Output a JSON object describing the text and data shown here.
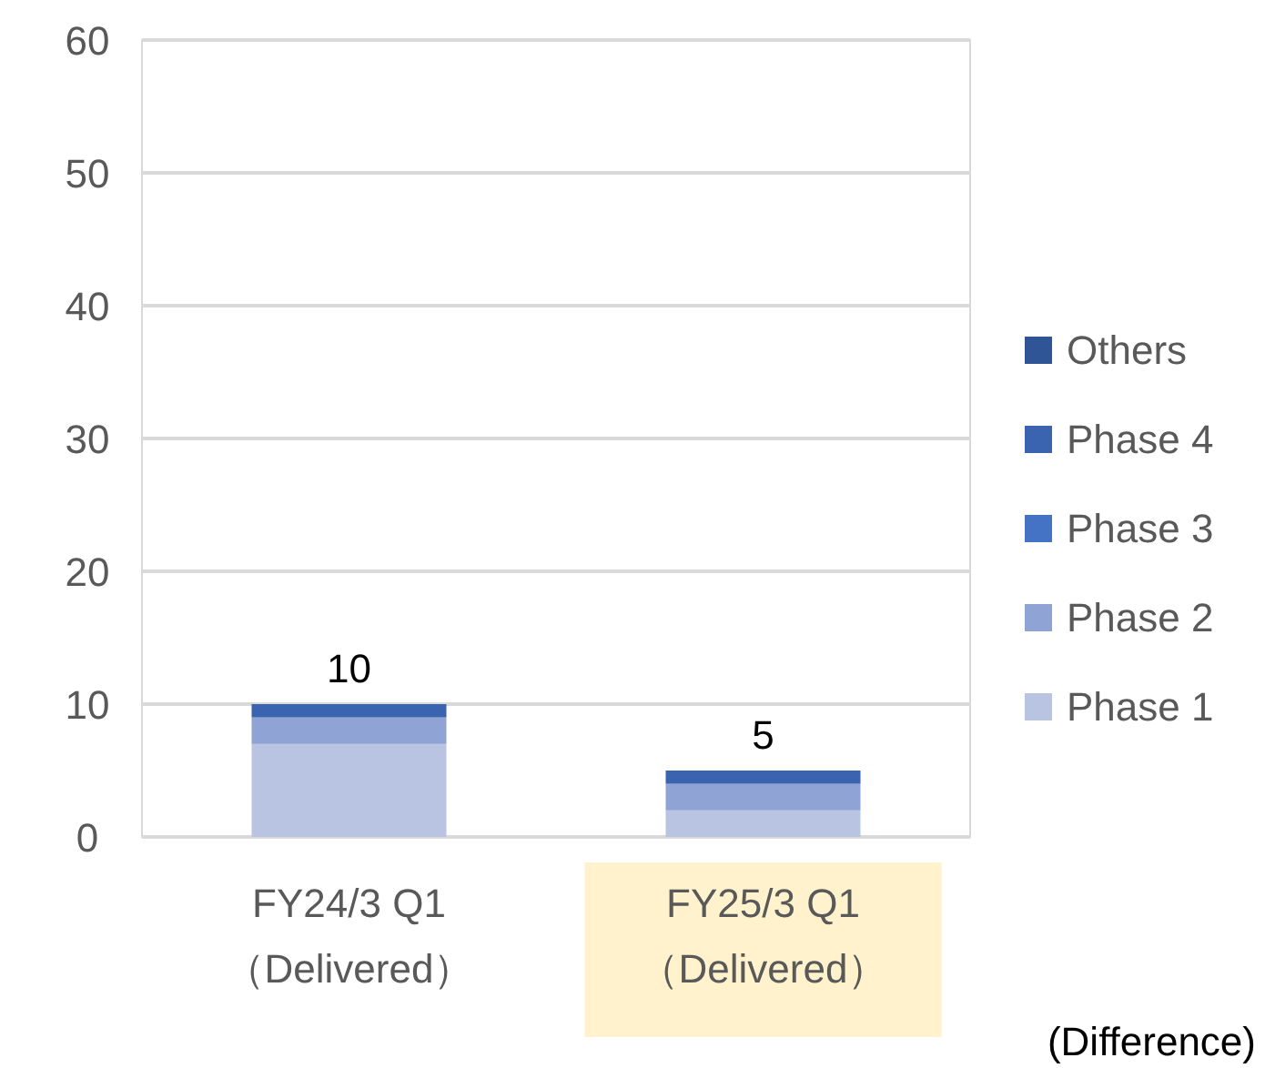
{
  "chart_data": {
    "type": "bar",
    "stacked": true,
    "categories": [
      "FY24/3 Q1\n（Delivered）",
      "FY25/3 Q1\n（Delivered）"
    ],
    "series": [
      {
        "name": "Phase 1",
        "color": "#b9c3e2",
        "values": [
          7,
          2
        ]
      },
      {
        "name": "Phase 2",
        "color": "#8fa4d4",
        "values": [
          2,
          2
        ]
      },
      {
        "name": "Phase 3",
        "color": "#4472c4",
        "values": [
          0,
          0
        ]
      },
      {
        "name": "Phase 4",
        "color": "#3a63b0",
        "values": [
          1,
          1
        ]
      },
      {
        "name": "Others",
        "color": "#2f5597",
        "values": [
          0,
          0
        ]
      }
    ],
    "totals": [
      "10",
      "5"
    ],
    "ylim": [
      0,
      60
    ],
    "yticks": [
      0,
      10,
      20,
      30,
      40,
      50,
      60
    ],
    "grid": "y",
    "legend": "right",
    "annotations": [
      "(Difference)"
    ]
  }
}
